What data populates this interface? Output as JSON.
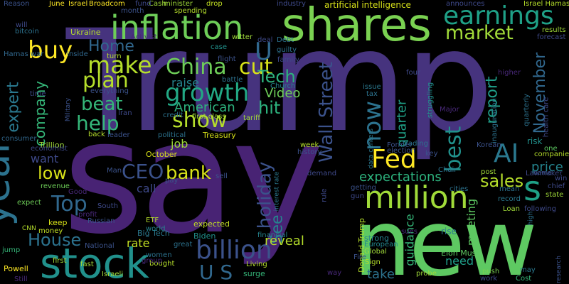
{
  "words": [
    {
      "text": "Trump",
      "color": "#46337e"
    },
    {
      "text": "say",
      "color": "#482374"
    },
    {
      "text": "new",
      "color": "#5ec962"
    },
    {
      "text": "shares",
      "color": "#7ad151"
    },
    {
      "text": "inflation",
      "color": "#6ece58"
    },
    {
      "text": "stock",
      "color": "#21918c"
    },
    {
      "text": "year",
      "color": "#2c728e"
    },
    {
      "text": "million",
      "color": "#a0da39"
    },
    {
      "text": "earnings",
      "color": "#1fa187"
    },
    {
      "text": "growth",
      "color": "#22a884"
    },
    {
      "text": "make",
      "color": "#b5de2b"
    },
    {
      "text": "billion",
      "color": "#3b528b"
    },
    {
      "text": "China",
      "color": "#6ece58"
    },
    {
      "text": "show",
      "color": "#b5de2b"
    },
    {
      "text": "market",
      "color": "#a0da39"
    },
    {
      "text": "Fed",
      "color": "#fde725"
    },
    {
      "text": "AI",
      "color": "#2a788e"
    },
    {
      "text": "plan",
      "color": "#b5de2b"
    },
    {
      "text": "buy",
      "color": "#fde725"
    },
    {
      "text": "cut",
      "color": "#d8e219"
    },
    {
      "text": "beat",
      "color": "#35b779"
    },
    {
      "text": "Home",
      "color": "#31688e"
    },
    {
      "text": "help",
      "color": "#35b779"
    },
    {
      "text": "Tech",
      "color": "#2db27d"
    },
    {
      "text": "CEO",
      "color": "#3b528b"
    },
    {
      "text": "Top",
      "color": "#31688e"
    },
    {
      "text": "low",
      "color": "#d8e219"
    },
    {
      "text": "bank",
      "color": "#d8e219"
    },
    {
      "text": "House",
      "color": "#2c728e"
    },
    {
      "text": "now",
      "color": "#2c728e"
    },
    {
      "text": "U S",
      "color": "#31688e"
    },
    {
      "text": "best",
      "color": "#21918c"
    },
    {
      "text": "hit",
      "color": "#2db27d"
    },
    {
      "text": "s",
      "color": "#1fa187"
    },
    {
      "text": "Wall Street",
      "color": "#3b528b"
    },
    {
      "text": "holiday",
      "color": "#3b528b"
    },
    {
      "text": "U",
      "color": "#31688e"
    },
    {
      "text": "sales",
      "color": "#b5de2b"
    },
    {
      "text": "expectations",
      "color": "#2db27d"
    },
    {
      "text": "report",
      "color": "#1f9e89"
    },
    {
      "text": "November",
      "color": "#31688e"
    },
    {
      "text": "quarter",
      "color": "#1fa187"
    },
    {
      "text": "company",
      "color": "#35b779"
    },
    {
      "text": "expert",
      "color": "#2a788e"
    },
    {
      "text": "American",
      "color": "#2db27d"
    },
    {
      "text": "Video",
      "color": "#6ece58"
    },
    {
      "text": "raise",
      "color": "#25848e"
    },
    {
      "text": "See",
      "color": "#26828e"
    },
    {
      "text": "reveal",
      "color": "#b5de2b"
    },
    {
      "text": "price",
      "color": "#25848e"
    },
    {
      "text": "rate",
      "color": "#c2df23"
    },
    {
      "text": "job",
      "color": "#a0da39"
    },
    {
      "text": "call",
      "color": "#3e4989"
    },
    {
      "text": "want",
      "color": "#3e4989"
    },
    {
      "text": "take",
      "color": "#2c728e"
    },
    {
      "text": "guidance",
      "color": "#35b779"
    },
    {
      "text": "need",
      "color": "#1f9e89"
    },
    {
      "text": "meeting",
      "color": "#5ec962"
    },
    {
      "text": "Elon Musk",
      "color": "#5ec962"
    },
    {
      "text": "Biden",
      "color": "#21918c"
    },
    {
      "text": "Big Tech",
      "color": "#2a788e"
    },
    {
      "text": "artificial intelligence",
      "color": "#d8e219"
    },
    {
      "text": "June",
      "color": "#fde725"
    },
    {
      "text": "Israel",
      "color": "#fde725"
    },
    {
      "text": "Broadcom",
      "color": "#fde725"
    },
    {
      "text": "Ukraine",
      "color": "#b5de2b"
    },
    {
      "text": "Donald Trump",
      "color": "#b5de2b"
    },
    {
      "text": "Israel Hamas",
      "color": "#b5de2b"
    },
    {
      "text": "Treasury",
      "color": "#d8e219"
    },
    {
      "text": "Trillion",
      "color": "#a0da39"
    },
    {
      "text": "October",
      "color": "#d8e219"
    },
    {
      "text": "expected",
      "color": "#c2df23"
    },
    {
      "text": "world",
      "color": "#25848e"
    },
    {
      "text": "financial",
      "color": "#25848e"
    },
    {
      "text": "first class",
      "color": "#a0da39"
    },
    {
      "text": "Powell",
      "color": "#fde725"
    },
    {
      "text": "strong",
      "color": "#26828e"
    },
    {
      "text": "European",
      "color": "#23888e"
    },
    {
      "text": "Global",
      "color": "#a0da39"
    },
    {
      "text": "Sign",
      "color": "#b5de2b"
    },
    {
      "text": "Living",
      "color": "#b5de2b"
    },
    {
      "text": "surge",
      "color": "#35b779"
    },
    {
      "text": "rise",
      "color": "#2a788e"
    },
    {
      "text": "record",
      "color": "#2a788e"
    },
    {
      "text": "Loan",
      "color": "#a0da39"
    },
    {
      "text": "following",
      "color": "#3e4989"
    },
    {
      "text": "Lawmaker",
      "color": "#3e4989"
    },
    {
      "text": "Chair",
      "color": "#2c728e"
    },
    {
      "text": "companies",
      "color": "#b5de2b"
    },
    {
      "text": "one",
      "color": "#5ec962"
    },
    {
      "text": "push",
      "color": "#7ad151"
    },
    {
      "text": "Cost",
      "color": "#35b779"
    },
    {
      "text": "work",
      "color": "#3e4989"
    },
    {
      "text": "may",
      "color": "#2a788e"
    },
    {
      "text": "risk",
      "color": "#21918c"
    },
    {
      "text": "keep",
      "color": "#d8e219"
    },
    {
      "text": "money",
      "color": "#c2df23"
    },
    {
      "text": "expect",
      "color": "#6ece58"
    },
    {
      "text": "revenue",
      "color": "#6ece58"
    },
    {
      "text": "bitcoin",
      "color": "#2c728e"
    },
    {
      "text": "Hamas war",
      "color": "#31688e"
    },
    {
      "text": "will",
      "color": "#3e4989"
    },
    {
      "text": "Reason",
      "color": "#3b528b"
    },
    {
      "text": "month",
      "color": "#3b528b"
    },
    {
      "text": "Cash",
      "color": "#a0da39"
    },
    {
      "text": "minister",
      "color": "#a0da39"
    },
    {
      "text": "drop",
      "color": "#c2df23"
    },
    {
      "text": "spending",
      "color": "#b5de2b"
    },
    {
      "text": "industry",
      "color": "#3e4989"
    },
    {
      "text": "fund",
      "color": "#3e4989"
    },
    {
      "text": "Activist",
      "color": "#482878"
    },
    {
      "text": "witter",
      "color": "#a0da39"
    },
    {
      "text": "deal",
      "color": "#3e4989"
    },
    {
      "text": "Debt",
      "color": "#2c728e"
    },
    {
      "text": "case",
      "color": "#21918c"
    },
    {
      "text": "flight",
      "color": "#3b528b"
    },
    {
      "text": "guilty",
      "color": "#2c728e"
    },
    {
      "text": "family",
      "color": "#3e4989"
    },
    {
      "text": "Inside",
      "color": "#31688e"
    },
    {
      "text": "turn",
      "color": "#b5de2b"
    },
    {
      "text": "battle",
      "color": "#2c728e"
    },
    {
      "text": "Church",
      "color": "#25848e"
    },
    {
      "text": "tax",
      "color": "#2c728e"
    },
    {
      "text": "issue",
      "color": "#2a788e"
    },
    {
      "text": "struggling",
      "color": "#21918c"
    },
    {
      "text": "four",
      "color": "#3e4989"
    },
    {
      "text": "announces",
      "color": "#3e4989"
    },
    {
      "text": "results",
      "color": "#a0da39"
    },
    {
      "text": "forecast",
      "color": "#3e4989"
    },
    {
      "text": "higher",
      "color": "#482878"
    },
    {
      "text": "health care",
      "color": "#3e4989"
    },
    {
      "text": "quarterly",
      "color": "#2c728e"
    },
    {
      "text": "inauguration",
      "color": "#2c728e"
    },
    {
      "text": "Major",
      "color": "#482878"
    },
    {
      "text": "Korean",
      "color": "#3b528b"
    },
    {
      "text": "key",
      "color": "#3b528b"
    },
    {
      "text": "election",
      "color": "#3b528b"
    },
    {
      "text": "Former",
      "color": "#3b528b"
    },
    {
      "text": "trading",
      "color": "#2c728e"
    },
    {
      "text": "data centers",
      "color": "#2a788e"
    },
    {
      "text": "week",
      "color": "#b5de2b"
    },
    {
      "text": "history",
      "color": "#3b528b"
    },
    {
      "text": "demand",
      "color": "#3e4989"
    },
    {
      "text": "interest rate",
      "color": "#2a788e"
    },
    {
      "text": "getting",
      "color": "#3b528b"
    },
    {
      "text": "rule",
      "color": "#3e4989"
    },
    {
      "text": "gun",
      "color": "#3e4989"
    },
    {
      "text": "way",
      "color": "#482878"
    },
    {
      "text": "sues",
      "color": "#482878"
    },
    {
      "text": "probe",
      "color": "#a0da39"
    },
    {
      "text": "high",
      "color": "#2c728e"
    },
    {
      "text": "post",
      "color": "#a0da39"
    },
    {
      "text": "mean",
      "color": "#2c728e"
    },
    {
      "text": "name",
      "color": "#3b528b"
    },
    {
      "text": "state",
      "color": "#a0da39"
    },
    {
      "text": "chief",
      "color": "#3e4989"
    },
    {
      "text": "win",
      "color": "#3e4989"
    },
    {
      "text": "research",
      "color": "#3b528b"
    },
    {
      "text": "cities",
      "color": "#2c728e"
    },
    {
      "text": "Military",
      "color": "#3b528b"
    },
    {
      "text": "everything",
      "color": "#3b528b"
    },
    {
      "text": "Iran",
      "color": "#3e4989"
    },
    {
      "text": "time",
      "color": "#3e4989"
    },
    {
      "text": "credit",
      "color": "#2c728e"
    },
    {
      "text": "leader",
      "color": "#3b528b"
    },
    {
      "text": "political",
      "color": "#2c728e"
    },
    {
      "text": "tariff",
      "color": "#a0da39"
    },
    {
      "text": "back",
      "color": "#b5de2b"
    },
    {
      "text": "economist",
      "color": "#3e4989"
    },
    {
      "text": "consumer",
      "color": "#31688e"
    },
    {
      "text": "pay",
      "color": "#3b528b"
    },
    {
      "text": "Man",
      "color": "#3b528b"
    },
    {
      "text": "sell",
      "color": "#3b528b"
    },
    {
      "text": "ETF",
      "color": "#b5de2b"
    },
    {
      "text": "Good",
      "color": "#482878"
    },
    {
      "text": "South",
      "color": "#3e4989"
    },
    {
      "text": "profit",
      "color": "#482878"
    },
    {
      "text": "Russian",
      "color": "#3b528b"
    },
    {
      "text": "National",
      "color": "#3b528b"
    },
    {
      "text": "great",
      "color": "#2c728e"
    },
    {
      "text": "women",
      "color": "#2c728e"
    },
    {
      "text": "bought",
      "color": "#b5de2b"
    },
    {
      "text": "group",
      "color": "#482878"
    },
    {
      "text": "fast",
      "color": "#a0da39"
    },
    {
      "text": "first",
      "color": "#a0da39"
    },
    {
      "text": "Israeli",
      "color": "#a0da39"
    },
    {
      "text": "CNN",
      "color": "#b5de2b"
    },
    {
      "text": "jump",
      "color": "#35b779"
    },
    {
      "text": "Still",
      "color": "#482878"
    },
    {
      "text": "Fire",
      "color": "#3b528b"
    }
  ]
}
